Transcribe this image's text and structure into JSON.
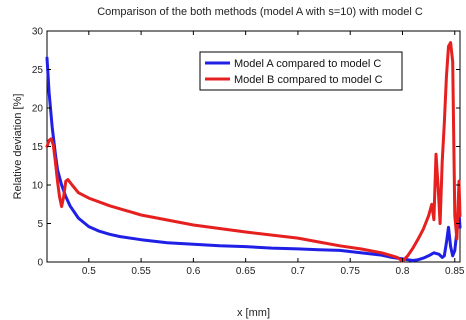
{
  "chart_data": {
    "type": "line",
    "title": "Comparison of the both methods (model A with s=10) with model C",
    "xlabel": "x [mm]",
    "ylabel": "Relative deviation [%]",
    "xlim": [
      0.46,
      0.855
    ],
    "ylim": [
      0,
      30
    ],
    "xticks": [
      0.5,
      0.55,
      0.6,
      0.65,
      0.7,
      0.75,
      0.8,
      0.85
    ],
    "xtick_labels": [
      "0.5",
      "0.55",
      "0.6",
      "0.65",
      "0.7",
      "0.75",
      "0.8",
      "0.85"
    ],
    "yticks": [
      0,
      5,
      10,
      15,
      20,
      25,
      30
    ],
    "ytick_labels": [
      "0",
      "5",
      "10",
      "15",
      "20",
      "25",
      "30"
    ],
    "grid": false,
    "legend_position": "top-right",
    "series": [
      {
        "name": "Model A compared to model C",
        "color": "#1f1fe6",
        "x": [
          0.46,
          0.462,
          0.465,
          0.468,
          0.47,
          0.474,
          0.478,
          0.482,
          0.49,
          0.5,
          0.51,
          0.52,
          0.53,
          0.55,
          0.575,
          0.6,
          0.625,
          0.65,
          0.675,
          0.7,
          0.72,
          0.74,
          0.76,
          0.78,
          0.79,
          0.8,
          0.805,
          0.81,
          0.815,
          0.82,
          0.825,
          0.83,
          0.835,
          0.838,
          0.84,
          0.842,
          0.844,
          0.846,
          0.848,
          0.85,
          0.852,
          0.854,
          0.855
        ],
        "y": [
          26.5,
          22.0,
          17.5,
          14.0,
          12.0,
          10.0,
          8.5,
          7.3,
          5.7,
          4.6,
          4.0,
          3.6,
          3.3,
          2.9,
          2.5,
          2.3,
          2.1,
          2.0,
          1.8,
          1.7,
          1.6,
          1.5,
          1.2,
          0.9,
          0.6,
          0.4,
          0.3,
          0.2,
          0.3,
          0.5,
          0.8,
          1.2,
          1.0,
          0.6,
          0.8,
          2.5,
          4.5,
          2.0,
          0.8,
          1.5,
          4.0,
          6.5,
          4.5
        ]
      },
      {
        "name": "Model B compared to model C",
        "color": "#e61f1f",
        "x": [
          0.46,
          0.462,
          0.464,
          0.466,
          0.468,
          0.47,
          0.472,
          0.474,
          0.476,
          0.478,
          0.48,
          0.484,
          0.49,
          0.5,
          0.52,
          0.55,
          0.6,
          0.65,
          0.7,
          0.72,
          0.74,
          0.76,
          0.78,
          0.79,
          0.795,
          0.8,
          0.805,
          0.81,
          0.815,
          0.82,
          0.825,
          0.828,
          0.83,
          0.832,
          0.834,
          0.836,
          0.838,
          0.84,
          0.842,
          0.844,
          0.846,
          0.848,
          0.85,
          0.852,
          0.854,
          0.855
        ],
        "y": [
          15.0,
          15.8,
          16.0,
          15.2,
          13.0,
          10.5,
          8.5,
          7.2,
          8.5,
          10.5,
          10.7,
          10.0,
          9.0,
          8.3,
          7.3,
          6.1,
          4.8,
          3.9,
          3.1,
          2.6,
          2.1,
          1.7,
          1.2,
          0.8,
          0.6,
          0.1,
          0.8,
          1.8,
          3.0,
          4.3,
          6.0,
          7.5,
          5.5,
          14.0,
          10.0,
          5.0,
          13.0,
          18.0,
          24.0,
          28.0,
          28.5,
          26.0,
          6.0,
          3.0,
          10.5,
          6.0
        ]
      }
    ]
  }
}
